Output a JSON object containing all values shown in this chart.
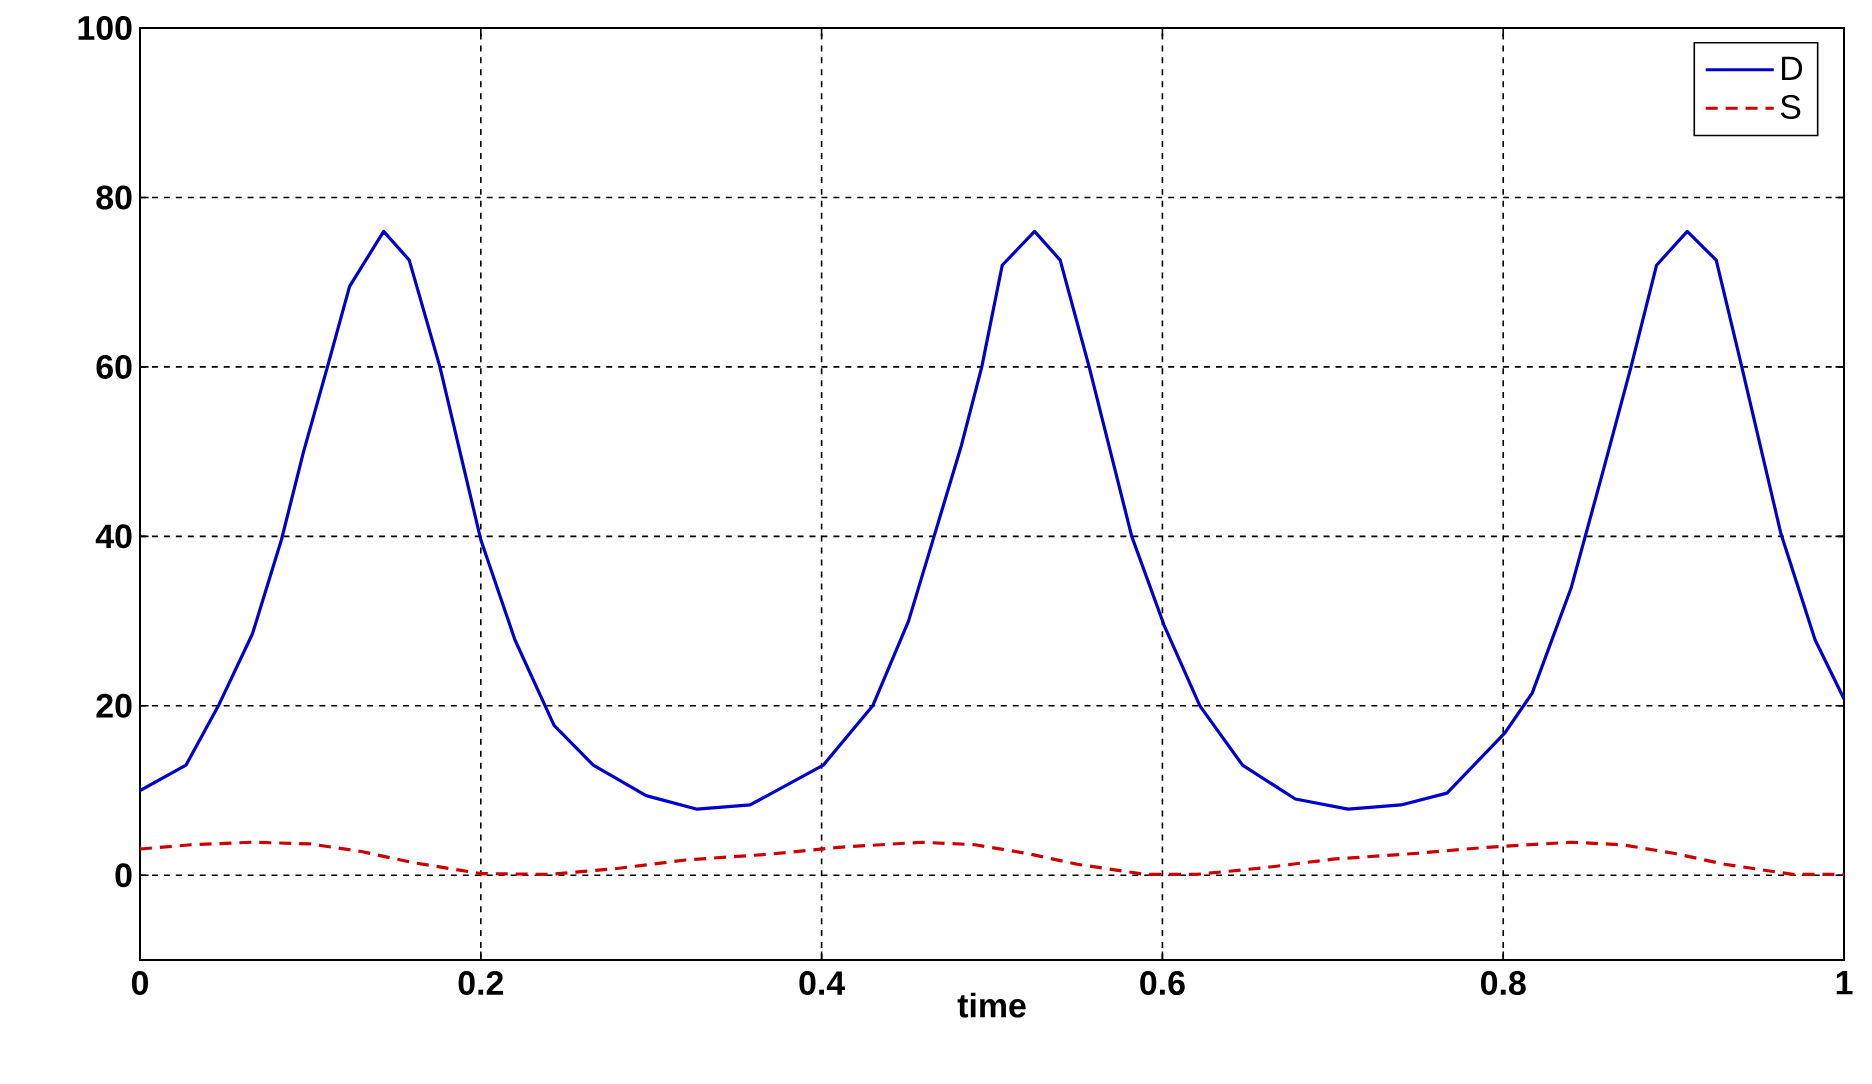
{
  "chart_data": {
    "type": "line",
    "xlabel": "time",
    "x": [
      0,
      0.027,
      0.046,
      0.066,
      0.083,
      0.096,
      0.11,
      0.123,
      0.143,
      0.158,
      0.176,
      0.2,
      0.22,
      0.243,
      0.266,
      0.297,
      0.327,
      0.358,
      0.401,
      0.43,
      0.451,
      0.466,
      0.482,
      0.494,
      0.506,
      0.525,
      0.54,
      0.557,
      0.582,
      0.601,
      0.622,
      0.647,
      0.678,
      0.709,
      0.74,
      0.767,
      0.801,
      0.817,
      0.84,
      0.859,
      0.875,
      0.89,
      0.908,
      0.925,
      0.94,
      0.963,
      0.983,
      1.0
    ],
    "series": [
      {
        "name": "D",
        "color": "#0000cc",
        "line_style": "solid",
        "values": [
          10,
          13,
          20,
          28.5,
          39.6,
          50,
          60,
          69.5,
          76,
          72.6,
          60,
          39.6,
          27.8,
          17.7,
          13,
          9.4,
          7.8,
          8.3,
          13,
          20,
          30,
          40,
          50.7,
          60,
          72,
          76,
          72.6,
          60,
          40,
          29.5,
          20,
          13,
          9,
          7.8,
          8.3,
          9.7,
          16.8,
          21.5,
          34,
          48,
          60,
          72,
          76,
          72.6,
          60,
          40.3,
          27.8,
          20.8
        ]
      },
      {
        "name": "S",
        "color": "#cc0000",
        "line_style": "dashed",
        "x": [
          0,
          0.03,
          0.066,
          0.1,
          0.13,
          0.16,
          0.2,
          0.24,
          0.28,
          0.32,
          0.37,
          0.41,
          0.459,
          0.49,
          0.52,
          0.55,
          0.59,
          0.62,
          0.66,
          0.7,
          0.75,
          0.79,
          0.84,
          0.87,
          0.9,
          0.93,
          0.97,
          1.0
        ],
        "values": [
          3.1,
          3.6,
          3.9,
          3.7,
          2.8,
          1.5,
          0.2,
          0.1,
          0.8,
          1.8,
          2.5,
          3.3,
          3.9,
          3.6,
          2.6,
          1.3,
          0.1,
          0.1,
          0.9,
          1.9,
          2.6,
          3.3,
          3.9,
          3.6,
          2.6,
          1.3,
          0.1,
          0.1
        ]
      }
    ],
    "xlim": [
      0,
      1
    ],
    "xticks": [
      0,
      0.2,
      0.4,
      0.6,
      0.8,
      1
    ],
    "ylim": [
      -10,
      100
    ],
    "yticks": [
      0,
      20,
      40,
      60,
      80,
      100
    ],
    "grid": true,
    "legend": "top right",
    "marker": "none"
  }
}
